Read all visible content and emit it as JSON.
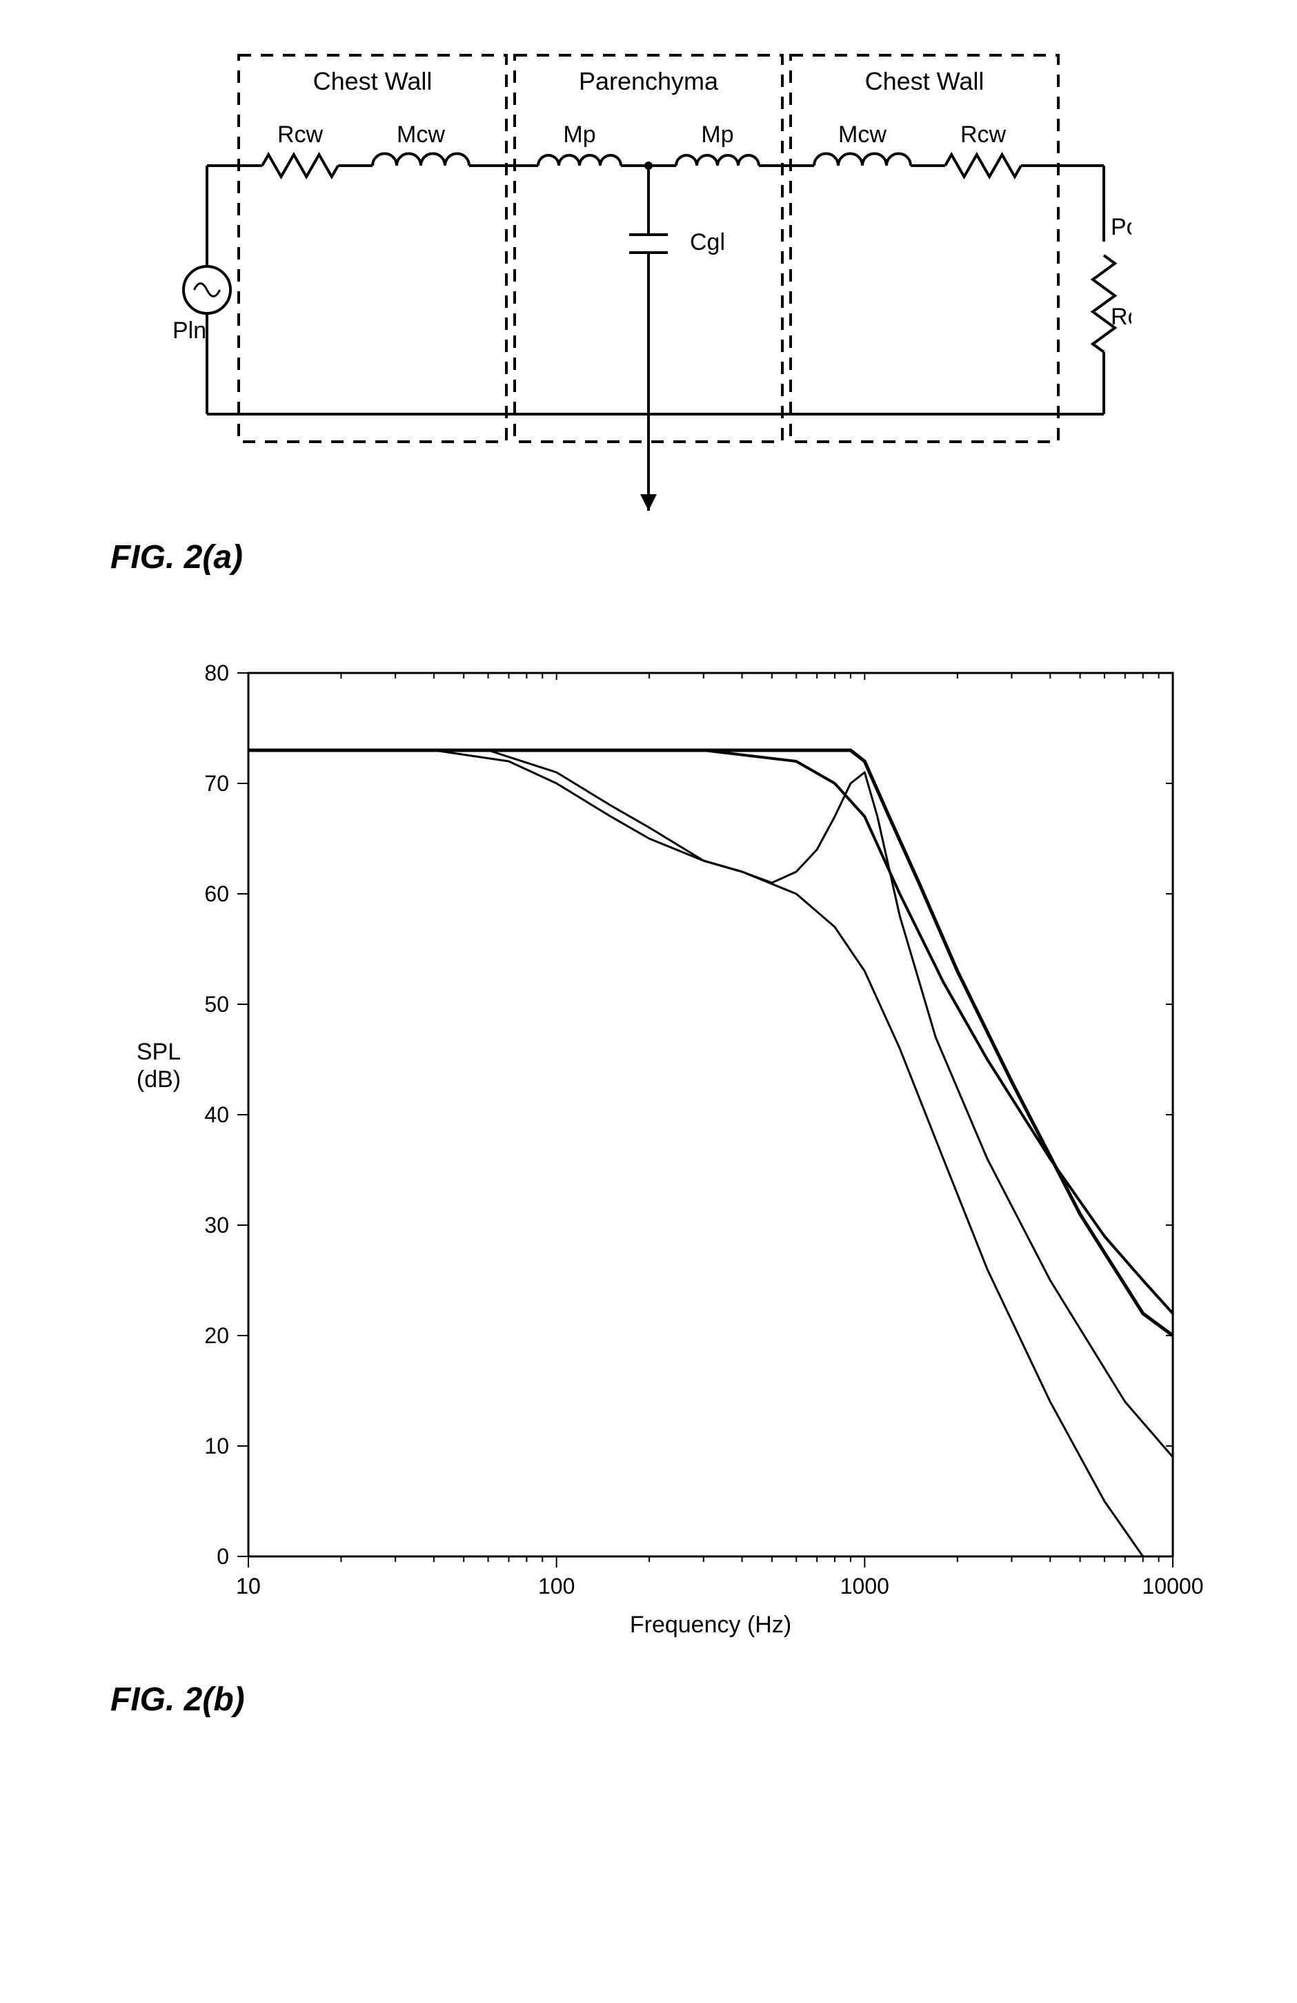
{
  "figA": {
    "label": "FIG.  2(a)",
    "sections": [
      "Chest Wall",
      "Parenchyma",
      "Chest Wall"
    ],
    "components": {
      "leftRcw": "Rcw",
      "leftMcw": "Mcw",
      "midMp1": "Mp",
      "midMp2": "Mp",
      "cap": "Cgl",
      "rightMcw": "Mcw",
      "rightRcw": "Rcw",
      "source": "Pln",
      "loadP": "Po",
      "loadR": "Ro"
    },
    "style": {
      "stroke": "#000000",
      "stroke_width": 4,
      "dash": "18,14",
      "font_size": 34,
      "section_font_size": 36
    }
  },
  "figB": {
    "label": "FIG.  2(b)",
    "xlabel": "Frequency (Hz)",
    "ylabel_top": "SPL",
    "ylabel_bot": "(dB)",
    "xticks": [
      10,
      100,
      1000,
      10000
    ],
    "yticks": [
      0,
      10,
      20,
      30,
      40,
      50,
      60,
      70,
      80
    ],
    "xlim": [
      10,
      10000
    ],
    "ylim": [
      0,
      80
    ],
    "series": [
      {
        "name": "curve-flat",
        "stroke": "#000000",
        "width": 5,
        "points": [
          [
            10,
            73
          ],
          [
            50,
            73
          ],
          [
            100,
            73
          ],
          [
            300,
            73
          ],
          [
            600,
            73
          ],
          [
            800,
            73
          ],
          [
            900,
            73
          ],
          [
            1000,
            72
          ],
          [
            1200,
            67
          ],
          [
            1500,
            61
          ],
          [
            2000,
            53
          ],
          [
            3000,
            43
          ],
          [
            5000,
            31
          ],
          [
            8000,
            22
          ],
          [
            10000,
            20
          ]
        ]
      },
      {
        "name": "curve-resonant",
        "stroke": "#000000",
        "width": 3,
        "points": [
          [
            10,
            73
          ],
          [
            30,
            73
          ],
          [
            60,
            73
          ],
          [
            100,
            71
          ],
          [
            150,
            68
          ],
          [
            200,
            66
          ],
          [
            300,
            63
          ],
          [
            400,
            62
          ],
          [
            500,
            61
          ],
          [
            600,
            62
          ],
          [
            700,
            64
          ],
          [
            800,
            67
          ],
          [
            900,
            70
          ],
          [
            1000,
            71
          ],
          [
            1100,
            67
          ],
          [
            1300,
            58
          ],
          [
            1700,
            47
          ],
          [
            2500,
            36
          ],
          [
            4000,
            25
          ],
          [
            7000,
            14
          ],
          [
            10000,
            9
          ]
        ]
      },
      {
        "name": "curve-steep",
        "stroke": "#000000",
        "width": 3,
        "points": [
          [
            10,
            73
          ],
          [
            40,
            73
          ],
          [
            70,
            72
          ],
          [
            100,
            70
          ],
          [
            150,
            67
          ],
          [
            200,
            65
          ],
          [
            300,
            63
          ],
          [
            400,
            62
          ],
          [
            600,
            60
          ],
          [
            800,
            57
          ],
          [
            1000,
            53
          ],
          [
            1300,
            46
          ],
          [
            1800,
            36
          ],
          [
            2500,
            26
          ],
          [
            4000,
            14
          ],
          [
            6000,
            5
          ],
          [
            8000,
            0
          ]
        ]
      },
      {
        "name": "curve-mid",
        "stroke": "#000000",
        "width": 4,
        "points": [
          [
            10,
            73
          ],
          [
            50,
            73
          ],
          [
            100,
            73
          ],
          [
            300,
            73
          ],
          [
            600,
            72
          ],
          [
            800,
            70
          ],
          [
            1000,
            67
          ],
          [
            1300,
            60
          ],
          [
            1800,
            52
          ],
          [
            2500,
            45
          ],
          [
            4000,
            36
          ],
          [
            6000,
            29
          ],
          [
            8000,
            25
          ],
          [
            10000,
            22
          ]
        ]
      }
    ],
    "style": {
      "axis_stroke": "#000000",
      "axis_width": 3,
      "tick_len_major": 16,
      "tick_len_minor": 8,
      "tick_width": 2,
      "label_font_size": 34,
      "tick_font_size": 32,
      "background": "#ffffff"
    }
  }
}
